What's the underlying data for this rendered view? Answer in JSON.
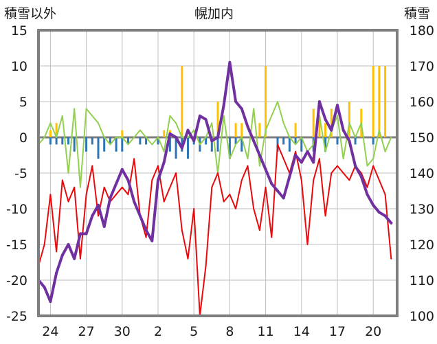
{
  "chart_data": {
    "type": "line",
    "title": "幌加内",
    "ylabel_left": "積雪以外",
    "ylabel_right": "積雪",
    "ylim_left": [
      -25,
      15
    ],
    "ylim_right": [
      100,
      180
    ],
    "yticks_left": [
      "15",
      "10",
      "5",
      "0",
      "-5",
      "-10",
      "-15",
      "-20",
      "-25"
    ],
    "yticks_right": [
      "180",
      "170",
      "160",
      "150",
      "140",
      "130",
      "120",
      "110",
      "100"
    ],
    "x_ticks": [
      "24",
      "27",
      "30",
      "2",
      "5",
      "8",
      "11",
      "14",
      "17",
      "20"
    ],
    "grid": true,
    "series": [
      {
        "role": "temperature",
        "axis": "left",
        "color": "#e8090c",
        "x": [
          0,
          0.5,
          1,
          1.5,
          2,
          2.5,
          3,
          3.5,
          4,
          4.5,
          5,
          5.5,
          6,
          6.5,
          7,
          7.5,
          8,
          8.5,
          9,
          9.5,
          10,
          10.5,
          11,
          11.5,
          12,
          12.5,
          13,
          13.5,
          14,
          14.5,
          15,
          15.5,
          16,
          16.5,
          17,
          17.5,
          18,
          18.5,
          19,
          19.5,
          20,
          20.5,
          21,
          21.5,
          22,
          22.5,
          23,
          23.5,
          24,
          24.5,
          25,
          25.5,
          26,
          26.5,
          27,
          27.5,
          28,
          28.5,
          29,
          29.5
        ],
        "values": [
          -18,
          -15,
          -8,
          -16,
          -6,
          -9,
          -7,
          -17,
          -8,
          -4,
          -11,
          -7,
          -9,
          -8,
          -7,
          -8,
          -3,
          -11,
          -14,
          -6,
          -4,
          -9,
          -7,
          -5,
          -13,
          -17,
          -10,
          -25,
          -18,
          -7,
          -5,
          -9,
          -8,
          -10,
          -6,
          -4,
          -10,
          -13,
          -7,
          -14,
          -1,
          -3,
          -5,
          -2,
          -6,
          -15,
          -6,
          -3,
          -11,
          -5,
          -4,
          -5,
          -6,
          -4,
          -5,
          -7,
          -4,
          -6,
          -8,
          -17
        ]
      },
      {
        "role": "humidity-like",
        "axis": "left",
        "color": "#92d050",
        "x": [
          0,
          0.5,
          1,
          1.5,
          2,
          2.5,
          3,
          3.5,
          4,
          4.5,
          5,
          5.5,
          6,
          6.5,
          7,
          7.5,
          8,
          8.5,
          9,
          9.5,
          10,
          10.5,
          11,
          11.5,
          12,
          12.5,
          13,
          13.5,
          14,
          14.5,
          15,
          15.5,
          16,
          16.5,
          17,
          17.5,
          18,
          18.5,
          19,
          19.5,
          20,
          20.5,
          21,
          21.5,
          22,
          22.5,
          23,
          23.5,
          24,
          24.5,
          25,
          25.5,
          26,
          26.5,
          27,
          27.5,
          28,
          28.5,
          29,
          29.5
        ],
        "values": [
          -1,
          0,
          2,
          0,
          3,
          -5,
          4,
          -7,
          4,
          3,
          2,
          0,
          -1,
          0,
          0,
          -1,
          0,
          1,
          0,
          -1,
          0,
          -2,
          3,
          2,
          0,
          0,
          1,
          -1,
          0,
          2,
          -5,
          3,
          -3,
          -1,
          0,
          -3,
          4,
          -4,
          1,
          3,
          5,
          2,
          0,
          -1,
          0,
          -2,
          -1,
          3,
          -2,
          1,
          3,
          -3,
          2,
          0,
          2,
          -4,
          -3,
          1,
          -2,
          0
        ]
      },
      {
        "role": "precipitation",
        "axis": "left",
        "color": "#ffc000",
        "x": [
          1,
          1.5,
          7,
          10.5,
          11,
          12,
          15,
          16.5,
          17,
          18.5,
          19,
          21.5,
          23,
          23.5,
          24,
          24.5,
          26,
          27,
          28,
          28.5,
          29
        ],
        "values": [
          1,
          2,
          1,
          1,
          1,
          10,
          5,
          2,
          2,
          2,
          10,
          2,
          4,
          3,
          2,
          4,
          5,
          4,
          10,
          10,
          10
        ]
      },
      {
        "role": "sunshine",
        "axis": "left",
        "color": "#2e75b6",
        "x": [
          1,
          1.5,
          2,
          2.5,
          3,
          4,
          4.5,
          5,
          5.5,
          6,
          6.5,
          7,
          7.5,
          8.5,
          9,
          10,
          11,
          11.5,
          12,
          12.5,
          13,
          13.5,
          14,
          14.5,
          15,
          16,
          16.5,
          17,
          20,
          20.5,
          21,
          21.5,
          22,
          23,
          24,
          25,
          26.5,
          28
        ],
        "values": [
          -1,
          -1,
          -1,
          -1,
          -2,
          -2,
          -1,
          -3,
          -2,
          -1,
          -2,
          -2,
          -1,
          -1,
          -1,
          -1,
          -2,
          -3,
          -2,
          -3,
          -1,
          -2,
          -1,
          -2,
          -2,
          -3,
          -1,
          -2,
          -2,
          -1,
          -2,
          -1,
          -2,
          -2,
          -2,
          -1,
          -1,
          -1
        ]
      },
      {
        "role": "snow-depth",
        "axis": "right",
        "color": "#7030a0",
        "x": [
          0,
          0.5,
          1,
          1.5,
          2,
          2.5,
          3,
          3.5,
          4,
          4.5,
          5,
          5.5,
          6,
          6.5,
          7,
          7.5,
          8,
          8.5,
          9,
          9.5,
          10,
          10.5,
          11,
          11.5,
          12,
          12.5,
          13,
          13.5,
          14,
          14.5,
          15,
          15.5,
          16,
          16.5,
          17,
          17.5,
          18,
          18.5,
          19,
          19.5,
          20,
          20.5,
          21,
          21.5,
          22,
          22.5,
          23,
          23.5,
          24,
          24.5,
          25,
          25.5,
          26,
          26.5,
          27,
          27.5,
          28,
          28.5,
          29,
          29.5
        ],
        "values": [
          110,
          108,
          104,
          112,
          117,
          120,
          116,
          123,
          123,
          128,
          131,
          125,
          133,
          137,
          141,
          138,
          132,
          128,
          124,
          121,
          138,
          143,
          151,
          150,
          147,
          152,
          149,
          156,
          155,
          149,
          150,
          159,
          171,
          160,
          158,
          153,
          149,
          145,
          141,
          137,
          135,
          133,
          139,
          145,
          143,
          146,
          143,
          160,
          155,
          152,
          159,
          152,
          149,
          142,
          139,
          134,
          131,
          129,
          128,
          126
        ]
      }
    ]
  }
}
